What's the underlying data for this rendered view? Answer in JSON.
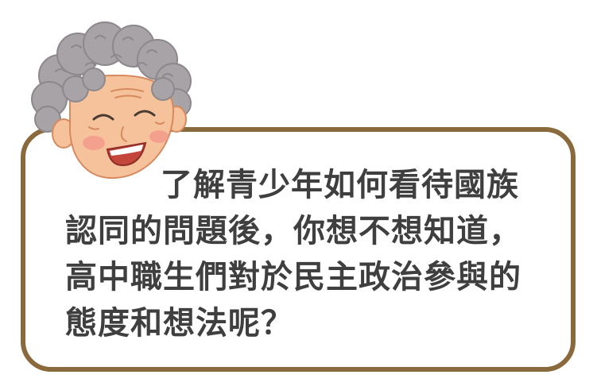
{
  "illustration": {
    "character": "grandmother-icon",
    "colors": {
      "hair": "#a7a3a6",
      "hair_shadow": "#8c888b",
      "skin": "#f6c29b",
      "skin_outline": "#d68a5d",
      "cheek": "#f2998b",
      "mouth": "#c4453a",
      "border": "#8a6a3d",
      "text": "#3f3f3f"
    }
  },
  "speech_bubble": {
    "text": "了解青少年如何看待國族認同的問題後，你想不想知道，高中職生們對於民主政治參與的態度和想法呢？"
  }
}
